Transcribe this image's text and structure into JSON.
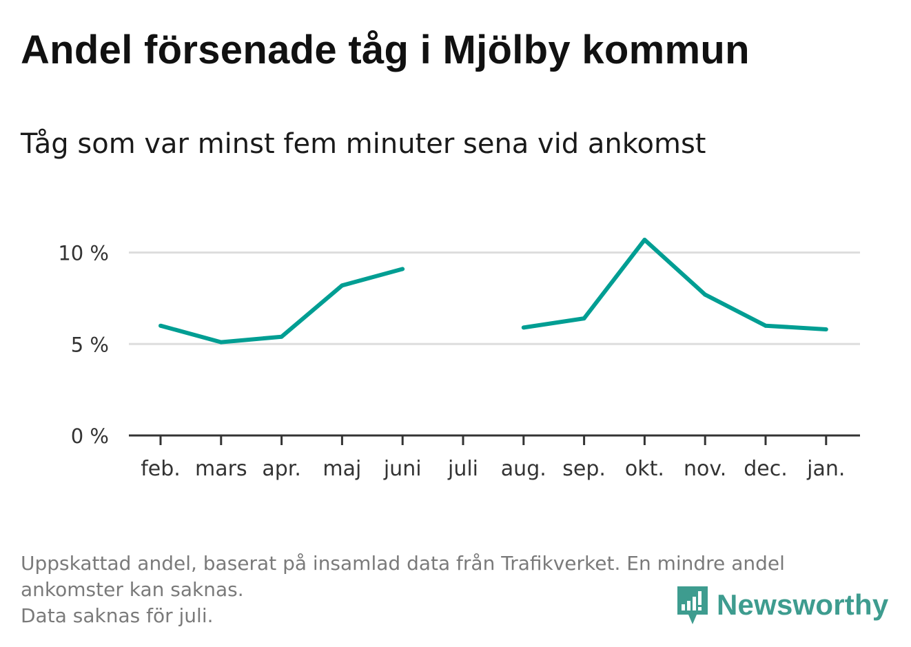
{
  "title": "Andel försenade tåg i Mjölby kommun",
  "subtitle": "Tåg som var minst fem minuter sena vid ankomst",
  "footnote": {
    "line1": "Uppskattad andel, baserat på insamlad data från Trafikverket. En mindre andel",
    "line2": "ankomster kan saknas.",
    "line3": "Data saknas för juli."
  },
  "brand": {
    "name": "Newsworthy",
    "icon": "newsworthy-logo-icon",
    "color": "#3e9c8f"
  },
  "chart_data": {
    "type": "line",
    "categories": [
      "feb.",
      "mars",
      "apr.",
      "maj",
      "juni",
      "juli",
      "aug.",
      "sep.",
      "okt.",
      "nov.",
      "dec.",
      "jan."
    ],
    "series": [
      {
        "values": [
          6.0,
          5.1,
          5.4,
          8.2,
          9.1,
          null,
          5.9,
          6.4,
          10.7,
          7.7,
          6.0,
          5.8
        ],
        "color": "#009e93"
      }
    ],
    "y_ticks": [
      {
        "value": 0,
        "label": "0 %"
      },
      {
        "value": 5,
        "label": "5 %"
      },
      {
        "value": 10,
        "label": "10 %"
      }
    ],
    "ylim": [
      0,
      11
    ],
    "grid": true,
    "gridline_color": "#dddddd",
    "axis_color": "#333333"
  }
}
